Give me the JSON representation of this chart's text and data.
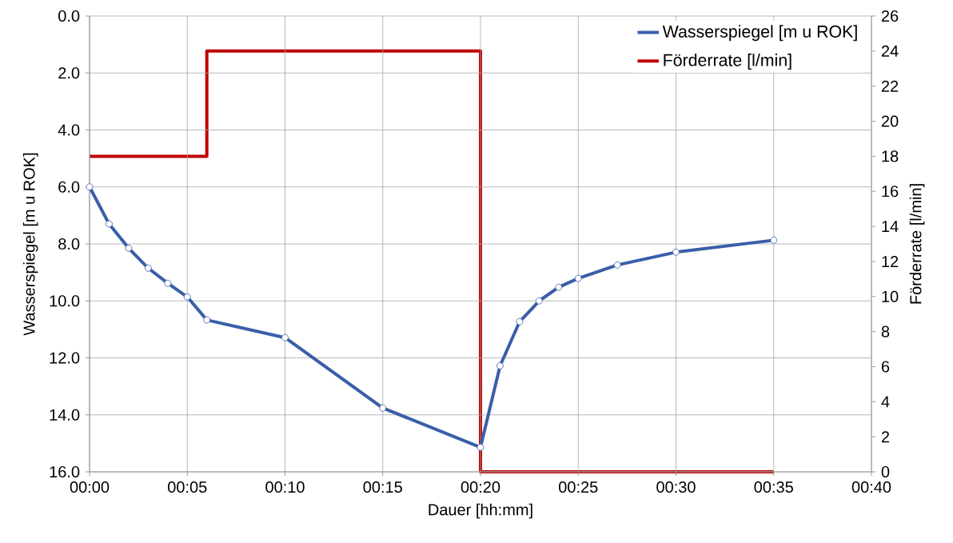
{
  "chart_data": {
    "type": "line",
    "xlabel": "Dauer [hh:mm]",
    "ylabel": "Wasserspiegel [m u ROK]",
    "y2label": "Förderrate [l/min]",
    "xlim": [
      0,
      40
    ],
    "xticks": [
      {
        "value": 0,
        "label": "00:00"
      },
      {
        "value": 5,
        "label": "00:05"
      },
      {
        "value": 10,
        "label": "00:10"
      },
      {
        "value": 15,
        "label": "00:15"
      },
      {
        "value": 20,
        "label": "00:20"
      },
      {
        "value": 25,
        "label": "00:25"
      },
      {
        "value": 30,
        "label": "00:30"
      },
      {
        "value": 35,
        "label": "00:35"
      },
      {
        "value": 40,
        "label": "00:40"
      }
    ],
    "ylim": [
      16,
      0
    ],
    "yticks": [
      {
        "value": 0,
        "label": "0.0"
      },
      {
        "value": 2,
        "label": "2.0"
      },
      {
        "value": 4,
        "label": "4.0"
      },
      {
        "value": 6,
        "label": "6.0"
      },
      {
        "value": 8,
        "label": "8.0"
      },
      {
        "value": 10,
        "label": "10.0"
      },
      {
        "value": 12,
        "label": "12.0"
      },
      {
        "value": 14,
        "label": "14.0"
      },
      {
        "value": 16,
        "label": "16.0"
      }
    ],
    "y2lim": [
      0,
      26
    ],
    "y2ticks": [
      0,
      2,
      4,
      6,
      8,
      10,
      12,
      14,
      16,
      18,
      20,
      22,
      24,
      26
    ],
    "grid": true,
    "legend": "top right",
    "series": [
      {
        "name": "Wasserspiegel [m u ROK]",
        "color": "#3a5ea8",
        "marker": "circle",
        "x": [
          0,
          1,
          2,
          3,
          4,
          5,
          6,
          10,
          15,
          20,
          21,
          22,
          23,
          24,
          25,
          27,
          30,
          35
        ],
        "values": [
          6.0,
          7.3,
          8.15,
          8.85,
          9.38,
          9.86,
          10.67,
          11.29,
          13.76,
          15.14,
          12.28,
          10.73,
          10.0,
          9.52,
          9.21,
          8.74,
          8.29,
          7.87
        ]
      },
      {
        "name": "Förderrate [l/min]",
        "color": "#c00000",
        "type": "step",
        "axis": "y2",
        "x": [
          0,
          6,
          20,
          35
        ],
        "values": [
          18,
          24,
          0,
          0
        ]
      }
    ]
  }
}
